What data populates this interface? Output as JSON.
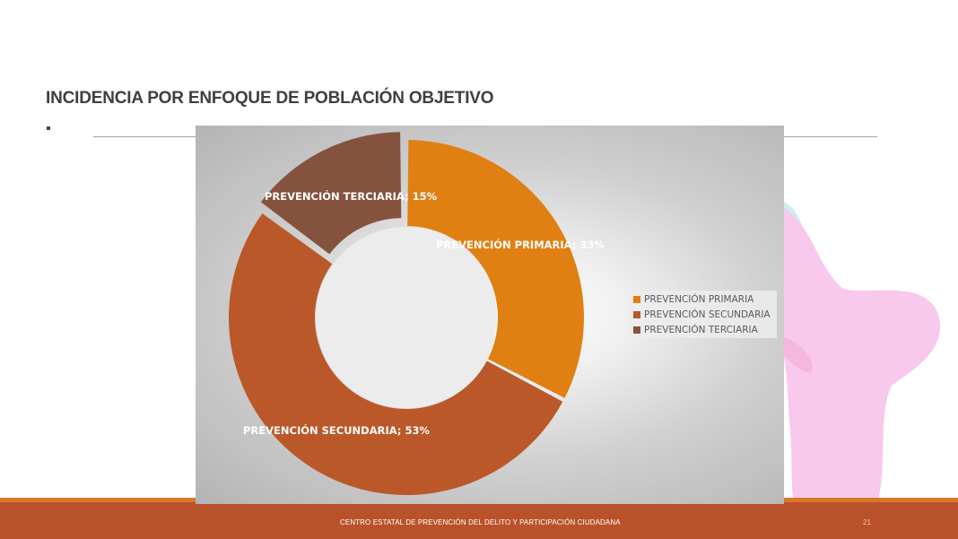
{
  "slide": {
    "title": "INCIDENCIA POR ENFOQUE DE POBLACIÓN OBJETIVO",
    "footer_text": "CENTRO ESTATAL DE PREVENCIÓN DEL DELITO Y PARTICIPACIÓN CIUDADANA",
    "page_number": "21"
  },
  "chart_data": {
    "type": "pie",
    "subtype": "doughnut",
    "title": "",
    "categories": [
      "PREVENCIÓN PRIMARIA",
      "PREVENCIÓN SECUNDARIA",
      "PREVENCIÓN TERCIARIA"
    ],
    "values": [
      33,
      53,
      15
    ],
    "unit": "%",
    "data_labels": [
      "PREVENCIÓN PRIMARIA; 33%",
      "PREVENCIÓN SECUNDARIA; 53%",
      "PREVENCIÓN TERCIARIA; 15%"
    ],
    "colors": [
      "#e08013",
      "#bb582a",
      "#85533d"
    ],
    "legend": {
      "position": "right",
      "entries": [
        "PREVENCIÓN PRIMARIA",
        "PREVENCIÓN SECUNDARIA",
        "PREVENCIÓN TERCIARIA"
      ]
    }
  },
  "theme": {
    "footer_band": "#b9522b",
    "footer_accent": "#d9782c",
    "chart_background": "#c8c8c8"
  }
}
